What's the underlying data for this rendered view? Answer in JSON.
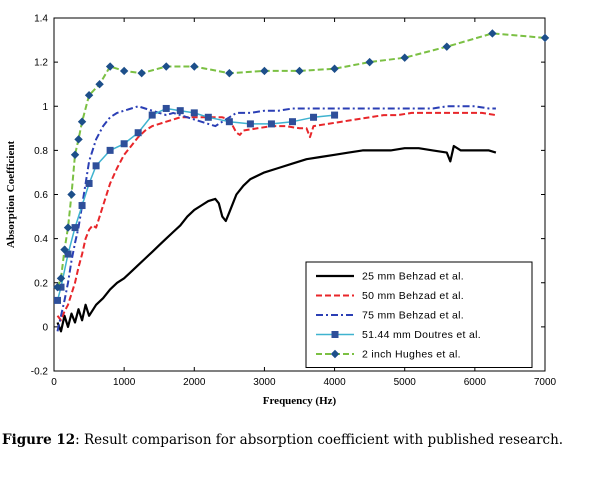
{
  "chart_data": {
    "type": "line",
    "title": "",
    "xlabel": "Frequency (Hz)",
    "ylabel": "Absorption Coefficient",
    "xlim": [
      0,
      7000
    ],
    "ylim": [
      -0.2,
      1.4
    ],
    "xticks": [
      0,
      1000,
      2000,
      3000,
      4000,
      5000,
      6000,
      7000
    ],
    "xtick_labels": [
      "0",
      "1000",
      "2000",
      "3000",
      "4000",
      "5000",
      "6000",
      "7000"
    ],
    "yticks": [
      -0.2,
      0,
      0.2,
      0.4,
      0.6,
      0.8,
      1,
      1.2,
      1.4
    ],
    "ytick_labels": [
      "-0.2",
      "0",
      "0.2",
      "0.4",
      "0.6",
      "0.8",
      "1",
      "1.2",
      "1.4"
    ],
    "grid": false,
    "legend_position": "bottom-right",
    "series": [
      {
        "name": "25 mm Behzad et al.",
        "color": "#000000",
        "style": "solid",
        "width": 2.2,
        "marker": "none",
        "x": [
          50,
          100,
          150,
          200,
          250,
          300,
          350,
          400,
          450,
          500,
          600,
          700,
          800,
          900,
          1000,
          1100,
          1200,
          1300,
          1400,
          1500,
          1600,
          1700,
          1800,
          1900,
          2000,
          2100,
          2200,
          2300,
          2350,
          2400,
          2450,
          2500,
          2600,
          2700,
          2800,
          3000,
          3200,
          3400,
          3600,
          3800,
          4000,
          4200,
          4400,
          4600,
          4800,
          5000,
          5200,
          5400,
          5600,
          5650,
          5700,
          5800,
          6000,
          6200,
          6300
        ],
        "y": [
          0.02,
          -0.02,
          0.05,
          0.0,
          0.06,
          0.02,
          0.08,
          0.03,
          0.1,
          0.05,
          0.1,
          0.13,
          0.17,
          0.2,
          0.22,
          0.25,
          0.28,
          0.31,
          0.34,
          0.37,
          0.4,
          0.43,
          0.46,
          0.5,
          0.53,
          0.55,
          0.57,
          0.58,
          0.56,
          0.5,
          0.48,
          0.52,
          0.6,
          0.64,
          0.67,
          0.7,
          0.72,
          0.74,
          0.76,
          0.77,
          0.78,
          0.79,
          0.8,
          0.8,
          0.8,
          0.81,
          0.81,
          0.8,
          0.79,
          0.75,
          0.82,
          0.8,
          0.8,
          0.8,
          0.79
        ]
      },
      {
        "name": "50 mm Behzad et al.",
        "color": "#e8262a",
        "style": "dashed",
        "width": 2,
        "marker": "none",
        "x": [
          50,
          100,
          150,
          200,
          250,
          300,
          350,
          400,
          450,
          500,
          550,
          600,
          700,
          800,
          900,
          1000,
          1100,
          1200,
          1300,
          1400,
          1500,
          1600,
          1700,
          1800,
          1900,
          2000,
          2200,
          2400,
          2500,
          2600,
          2650,
          2700,
          2900,
          3100,
          3300,
          3500,
          3600,
          3650,
          3700,
          3900,
          4100,
          4300,
          4500,
          4700,
          4900,
          5100,
          5300,
          5500,
          5700,
          5900,
          6100,
          6300
        ],
        "y": [
          0.05,
          0.03,
          0.07,
          0.1,
          0.15,
          0.2,
          0.27,
          0.33,
          0.4,
          0.44,
          0.46,
          0.45,
          0.55,
          0.65,
          0.72,
          0.78,
          0.82,
          0.86,
          0.89,
          0.91,
          0.92,
          0.93,
          0.94,
          0.95,
          0.95,
          0.95,
          0.95,
          0.95,
          0.94,
          0.88,
          0.87,
          0.89,
          0.9,
          0.91,
          0.91,
          0.9,
          0.9,
          0.86,
          0.91,
          0.92,
          0.93,
          0.94,
          0.95,
          0.96,
          0.96,
          0.97,
          0.97,
          0.97,
          0.97,
          0.97,
          0.97,
          0.96
        ]
      },
      {
        "name": "75 mm Behzad et al.",
        "color": "#2b3fb5",
        "style": "dashdot",
        "width": 2,
        "marker": "none",
        "x": [
          50,
          100,
          150,
          200,
          250,
          300,
          350,
          400,
          450,
          500,
          600,
          700,
          800,
          900,
          1000,
          1100,
          1200,
          1300,
          1400,
          1500,
          1600,
          1700,
          1800,
          1900,
          2000,
          2100,
          2200,
          2300,
          2400,
          2500,
          2600,
          2800,
          3000,
          3200,
          3400,
          3600,
          3800,
          4000,
          4200,
          4400,
          4600,
          4800,
          5000,
          5200,
          5400,
          5600,
          5800,
          6000,
          6200,
          6300
        ],
        "y": [
          -0.02,
          0.05,
          0.12,
          0.2,
          0.3,
          0.38,
          0.45,
          0.55,
          0.65,
          0.75,
          0.85,
          0.91,
          0.95,
          0.97,
          0.98,
          0.99,
          1.0,
          0.99,
          0.98,
          0.97,
          0.96,
          0.97,
          0.96,
          0.95,
          0.94,
          0.93,
          0.92,
          0.91,
          0.93,
          0.95,
          0.97,
          0.97,
          0.98,
          0.98,
          0.99,
          0.99,
          0.99,
          0.99,
          0.99,
          0.99,
          0.99,
          0.99,
          0.99,
          0.99,
          0.99,
          1.0,
          1.0,
          1.0,
          0.99,
          0.99
        ]
      },
      {
        "name": "51.44 mm Doutres et al.",
        "color": "#3fb3cf",
        "style": "solid",
        "width": 1.5,
        "marker": "square",
        "marker_color": "#2e4f9a",
        "x": [
          50,
          100,
          200,
          300,
          400,
          500,
          600,
          800,
          1000,
          1200,
          1400,
          1600,
          1800,
          2000,
          2200,
          2500,
          2800,
          3100,
          3400,
          3700,
          4000
        ],
        "y": [
          0.12,
          0.18,
          0.33,
          0.45,
          0.55,
          0.65,
          0.73,
          0.8,
          0.83,
          0.88,
          0.96,
          0.99,
          0.98,
          0.97,
          0.95,
          0.93,
          0.92,
          0.92,
          0.93,
          0.95,
          0.96
        ]
      },
      {
        "name": "2 inch Hughes et al.",
        "color": "#7bc043",
        "style": "dashed",
        "width": 2,
        "marker": "diamond",
        "marker_color": "#1d4f8a",
        "x": [
          50,
          100,
          150,
          200,
          250,
          300,
          350,
          400,
          500,
          650,
          800,
          1000,
          1250,
          1600,
          2000,
          2500,
          3000,
          3500,
          4000,
          4500,
          5000,
          5600,
          6250,
          7000
        ],
        "y": [
          0.18,
          0.22,
          0.35,
          0.45,
          0.6,
          0.78,
          0.85,
          0.93,
          1.05,
          1.1,
          1.18,
          1.16,
          1.15,
          1.18,
          1.18,
          1.15,
          1.16,
          1.16,
          1.17,
          1.2,
          1.22,
          1.27,
          1.33,
          1.31
        ]
      }
    ]
  },
  "caption": {
    "lead": "Figure 12",
    "text": ": Result comparison for absorption coefficient with published research."
  }
}
